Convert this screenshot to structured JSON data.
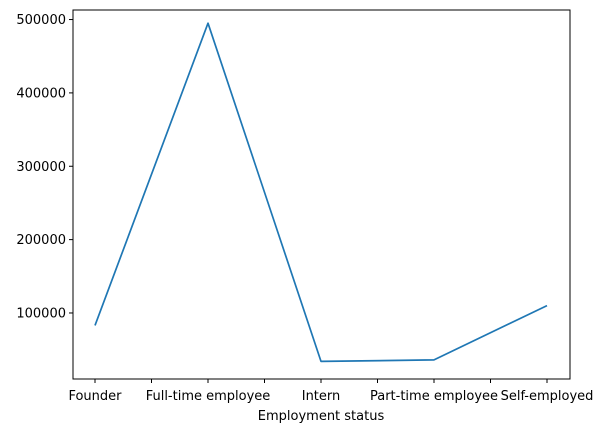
{
  "chart_data": {
    "type": "line",
    "title": "",
    "xlabel": "Employment status",
    "ylabel": "",
    "categories": [
      "Founder",
      "Full-time employee",
      "Intern",
      "Part-time employee",
      "Self-employed"
    ],
    "series": [
      {
        "values": [
          83000,
          495000,
          34000,
          36000,
          110000
        ]
      }
    ],
    "ylim": [
      10000,
      513000
    ],
    "yticks": [
      100000,
      200000,
      300000,
      400000,
      500000
    ],
    "ytick_labels": [
      "100000",
      "200000",
      "300000",
      "400000",
      "500000"
    ],
    "grid": false,
    "legend": "none",
    "line_color": "#1f77b4"
  }
}
